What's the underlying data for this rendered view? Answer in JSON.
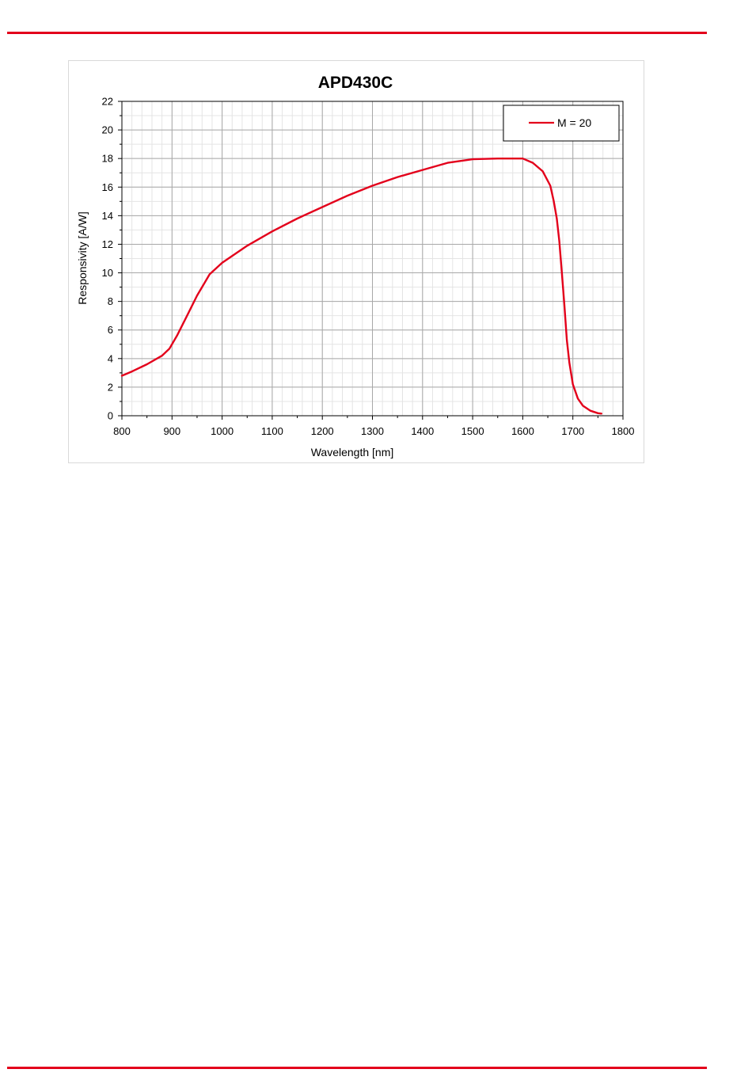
{
  "page": {
    "rule_color": "#e3001b"
  },
  "chart_data": {
    "type": "line",
    "title": "APD430C",
    "xlabel": "Wavelength  [nm]",
    "ylabel": "Responsivity  [A/W]",
    "xlim": [
      800,
      1800
    ],
    "ylim": [
      0,
      22
    ],
    "x_ticks": [
      "800",
      "900",
      "1000",
      "1100",
      "1200",
      "1300",
      "1400",
      "1500",
      "1600",
      "1700",
      "1800"
    ],
    "y_ticks": [
      "0",
      "2",
      "4",
      "6",
      "8",
      "10",
      "12",
      "14",
      "16",
      "18",
      "20",
      "22"
    ],
    "grid": true,
    "legend_position": "top-right",
    "series": [
      {
        "name": "M = 20",
        "color": "#e3001b",
        "x": [
          800,
          820,
          850,
          880,
          895,
          910,
          930,
          950,
          975,
          1000,
          1050,
          1100,
          1150,
          1200,
          1250,
          1300,
          1350,
          1400,
          1450,
          1500,
          1550,
          1600,
          1620,
          1640,
          1655,
          1662,
          1668,
          1673,
          1678,
          1683,
          1688,
          1693,
          1700,
          1710,
          1720,
          1735,
          1750,
          1757
        ],
        "y": [
          2.8,
          3.1,
          3.6,
          4.2,
          4.7,
          5.6,
          7.0,
          8.4,
          9.9,
          10.7,
          11.9,
          12.9,
          13.8,
          14.6,
          15.4,
          16.1,
          16.7,
          17.2,
          17.7,
          17.95,
          18.0,
          18.0,
          17.7,
          17.1,
          16.1,
          15.0,
          13.8,
          12.2,
          10.0,
          7.8,
          5.3,
          3.7,
          2.2,
          1.2,
          0.7,
          0.35,
          0.18,
          0.15
        ]
      }
    ]
  }
}
